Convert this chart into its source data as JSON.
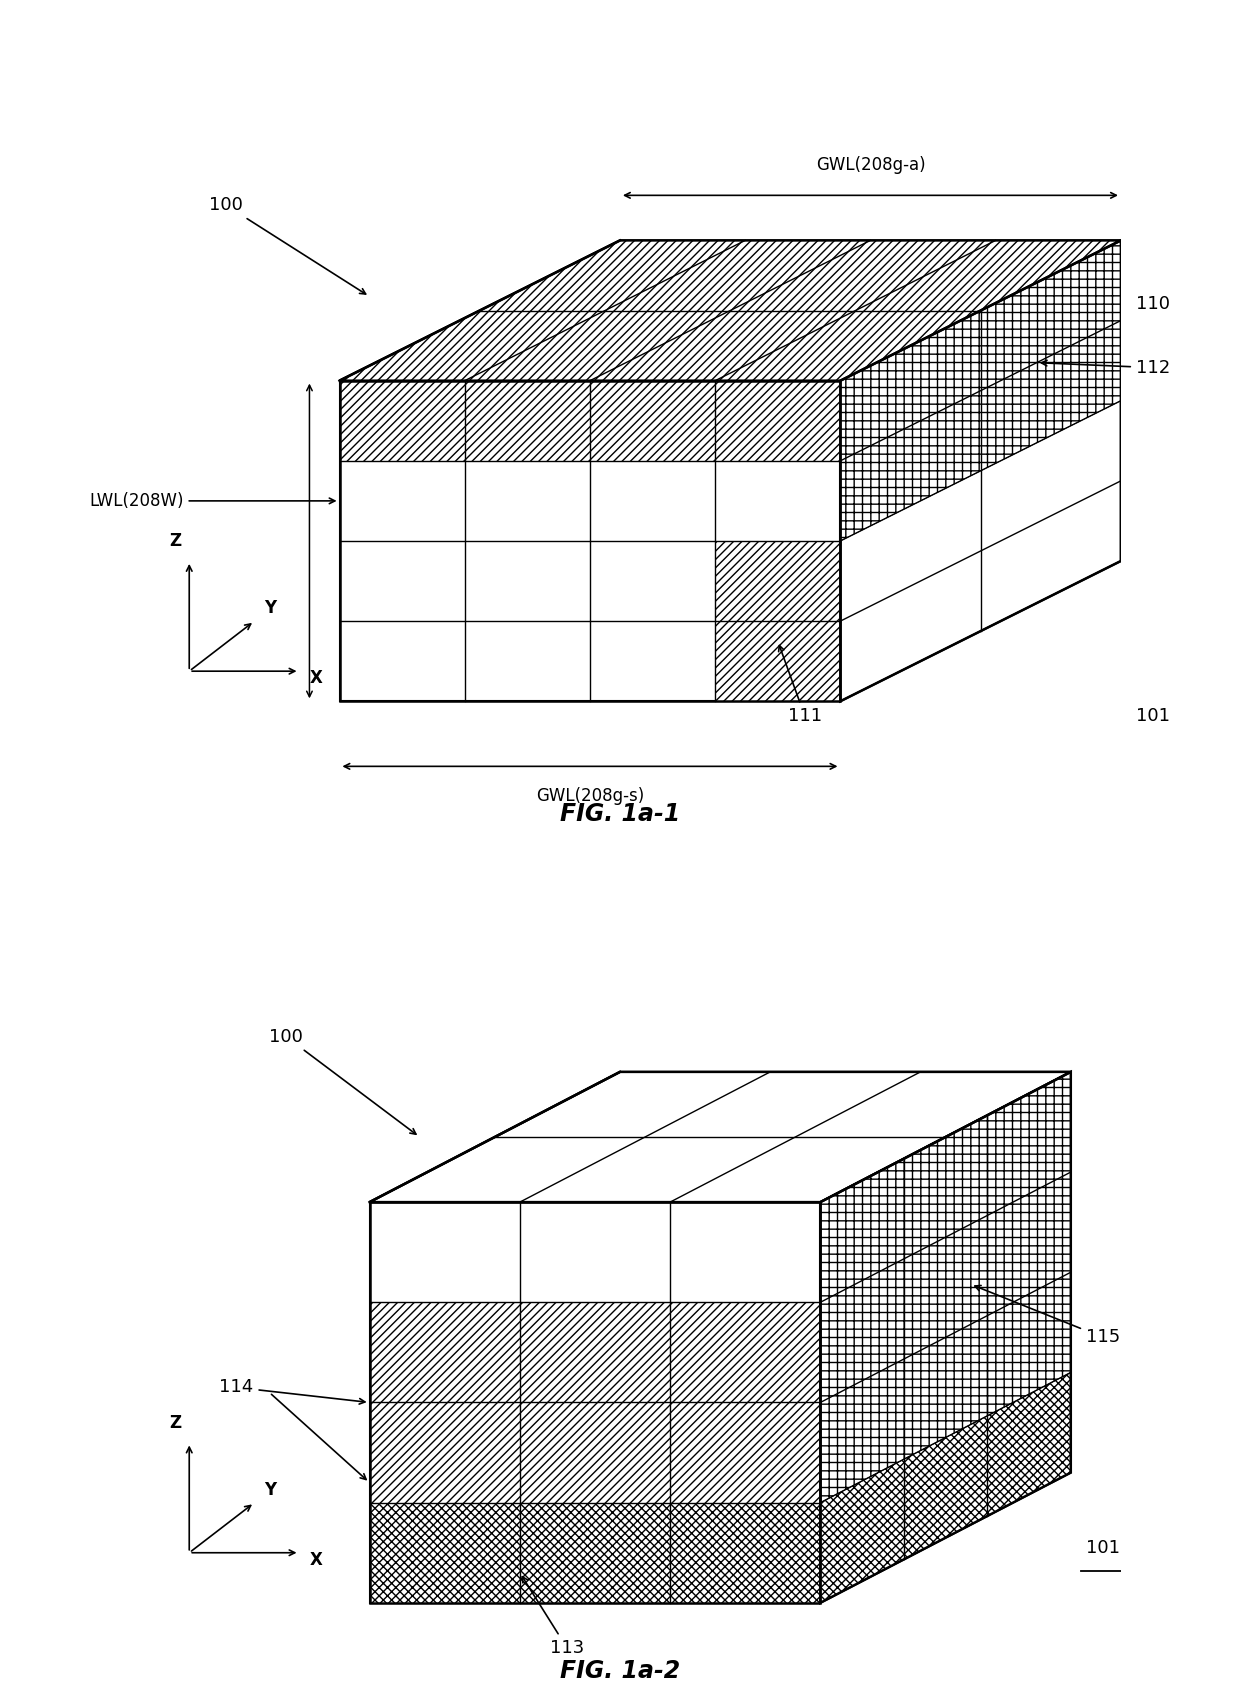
{
  "fig1_title": "FIG. 1a-1",
  "fig2_title": "FIG. 1a-2",
  "background_color": "#ffffff",
  "line_color": "#000000",
  "label_100_1": "100",
  "label_101_1": "101",
  "label_110": "110",
  "label_111": "111",
  "label_112": "112",
  "label_lwl": "LWL(208W)",
  "label_gwl_a": "GWL(208g-a)",
  "label_gwl_s": "GWL(208g-s)",
  "label_100_2": "100",
  "label_101_2": "101",
  "label_113": "113",
  "label_114": "114",
  "label_115": "115"
}
